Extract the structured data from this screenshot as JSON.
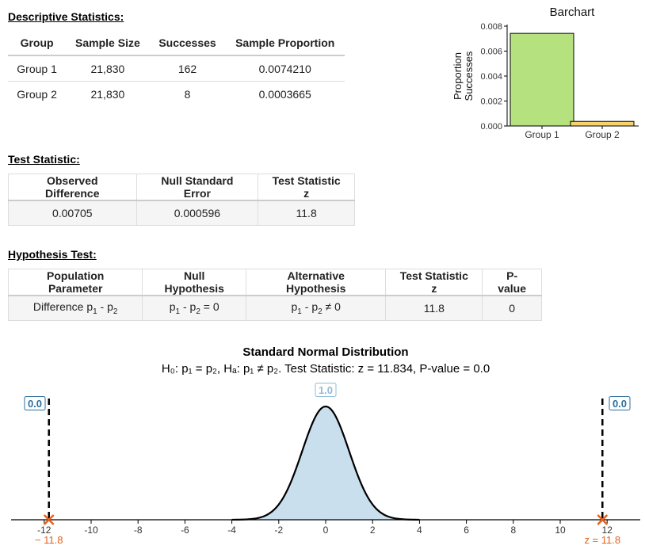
{
  "descriptive": {
    "title": "Descriptive Statistics:",
    "headers": [
      "Group",
      "Sample Size",
      "Successes",
      "Sample Proportion"
    ],
    "rows": [
      [
        "Group 1",
        "21,830",
        "162",
        "0.0074210"
      ],
      [
        "Group 2",
        "21,830",
        "8",
        "0.0003665"
      ]
    ]
  },
  "test_statistic": {
    "title": "Test Statistic:",
    "headers": [
      "Observed Difference",
      "Null Standard Error",
      "Test Statistic z"
    ],
    "row": [
      "0.00705",
      "0.000596",
      "11.8"
    ]
  },
  "hypothesis": {
    "title": "Hypothesis Test:",
    "headers": [
      "Population Parameter",
      "Null Hypothesis",
      "Alternative Hypothesis",
      "Test Statistic z",
      "P-value"
    ],
    "param_text": "Difference p",
    "p_sym": "p",
    "sub1": "1",
    "sub2": "2",
    "minus": " - ",
    "null_rel": " = 0",
    "alt_rel": " ≠ 0",
    "z": "11.8",
    "pvalue": "0"
  },
  "chart_data": [
    {
      "type": "bar",
      "title": "Barchart",
      "categories": [
        "Group 1",
        "Group 2"
      ],
      "values": [
        0.007421,
        0.0003665
      ],
      "colors": [
        "#b5e27f",
        "#f7d46b"
      ],
      "ylabel_line1": "Proportion",
      "ylabel_line2": "Successes",
      "ylim": [
        0,
        0.008
      ],
      "yticks": [
        "0.000",
        "0.002",
        "0.004",
        "0.006",
        "0.008"
      ]
    },
    {
      "type": "area",
      "title": "Standard Normal Distribution",
      "subtitle": "H₀:  p₁ = p₂, Hₐ:  p₁ ≠ p₂. Test Statistic: z  =  11.834, P-value = 0.0",
      "xlim": [
        -13.4,
        13.2
      ],
      "xticks": [
        "-12",
        "-10",
        "-8",
        "-6",
        "-4",
        "-2",
        "0",
        "2",
        "4",
        "6",
        "8",
        "10",
        "12"
      ],
      "center_label": "1.0",
      "left_label": "0.0",
      "right_label": "0.0",
      "z_left": -11.8,
      "z_right": 11.8,
      "z_left_text": "− 11.8",
      "z_right_text": "z = 11.8",
      "fill_color": "#c9dfee",
      "accent_color": "#e8601c",
      "label_color": "#2b6e9e",
      "center_label_color": "#8fbcd8"
    }
  ]
}
